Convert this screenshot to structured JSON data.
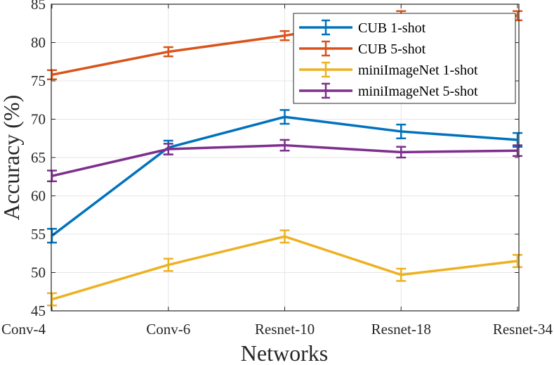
{
  "chart_data": {
    "type": "line",
    "title": "",
    "xlabel": "Networks",
    "ylabel": "Accuracy (%)",
    "categories": [
      "Conv-4",
      "Conv-6",
      "Resnet-10",
      "Resnet-18",
      "Resnet-34"
    ],
    "ylim": [
      45,
      85
    ],
    "yticks": [
      45,
      50,
      55,
      60,
      65,
      70,
      75,
      80,
      85
    ],
    "ytick_labels": [
      "45",
      "50",
      "55",
      "60",
      "65",
      "70",
      "75",
      "80",
      "85"
    ],
    "grid": true,
    "legend_position": "top-right",
    "series": [
      {
        "name": "CUB 1-shot",
        "color": "#0072BD",
        "values": [
          54.8,
          66.3,
          70.3,
          68.4,
          67.3
        ],
        "errors": [
          0.9,
          0.9,
          0.9,
          0.9,
          0.9
        ]
      },
      {
        "name": "CUB 5-shot",
        "color": "#D95319",
        "values": [
          75.8,
          78.8,
          80.9,
          83.5,
          83.5
        ],
        "errors": [
          0.6,
          0.6,
          0.6,
          0.6,
          0.6
        ]
      },
      {
        "name": "miniImageNet 1-shot",
        "color": "#EDB120",
        "values": [
          46.5,
          51.0,
          54.7,
          49.7,
          51.5
        ],
        "errors": [
          0.8,
          0.8,
          0.8,
          0.8,
          0.8
        ]
      },
      {
        "name": "miniImageNet 5-shot",
        "color": "#7E2F8E",
        "values": [
          62.6,
          66.1,
          66.6,
          65.7,
          65.9
        ],
        "errors": [
          0.7,
          0.7,
          0.7,
          0.7,
          0.7
        ]
      }
    ]
  }
}
